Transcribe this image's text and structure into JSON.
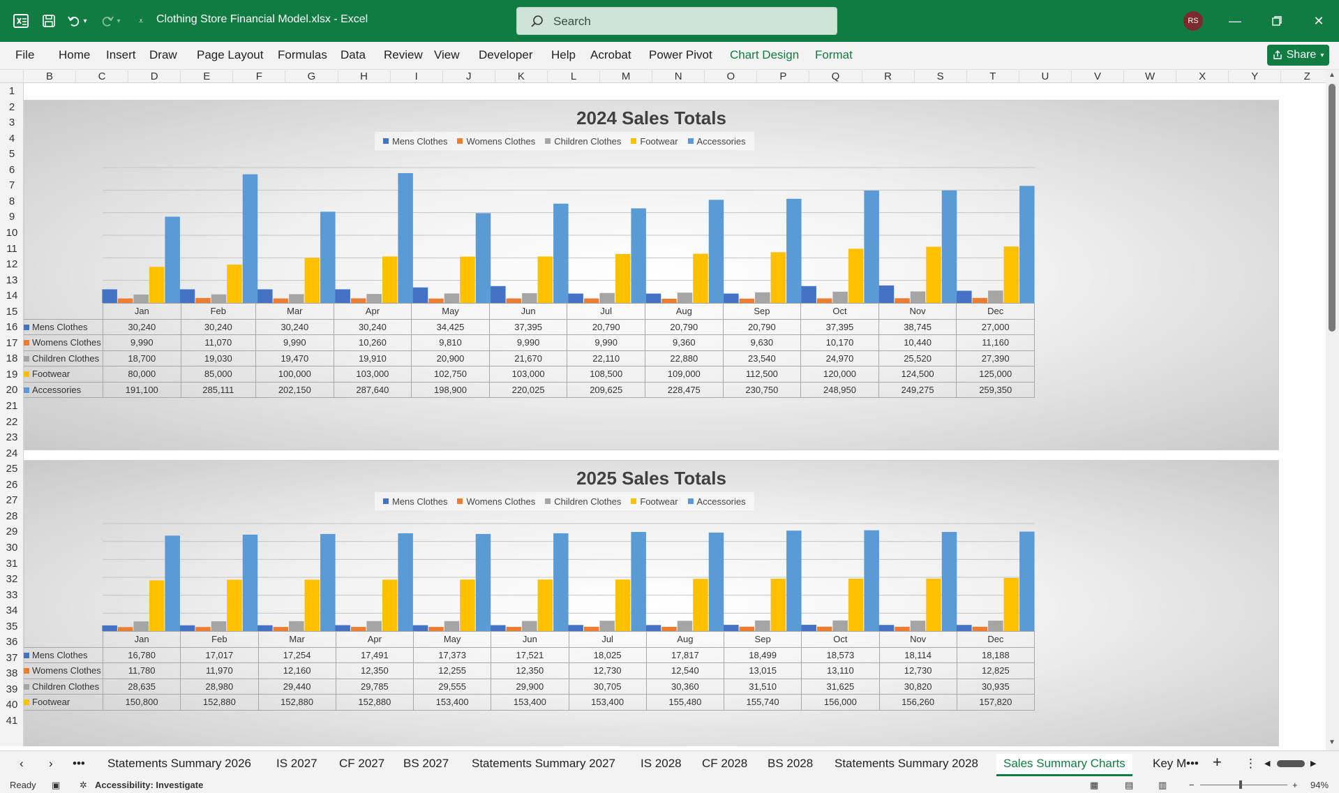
{
  "app": {
    "doc_title": "Clothing Store Financial Model.xlsx  -  Excel",
    "search_placeholder": "Search",
    "user_initials": "RS"
  },
  "ribbon": {
    "tabs": [
      "File",
      "Home",
      "Insert",
      "Draw",
      "Page Layout",
      "Formulas",
      "Data",
      "Review",
      "View",
      "Developer",
      "Help",
      "Acrobat",
      "Power Pivot",
      "Chart Design",
      "Format"
    ],
    "share_label": "Share"
  },
  "columns": [
    "B",
    "C",
    "D",
    "E",
    "F",
    "G",
    "H",
    "I",
    "J",
    "K",
    "L",
    "M",
    "N",
    "O",
    "P",
    "Q",
    "R",
    "S",
    "T",
    "U",
    "V",
    "W",
    "X",
    "Y",
    "Z"
  ],
  "rows": [
    "1",
    "2",
    "3",
    "4",
    "5",
    "6",
    "7",
    "8",
    "9",
    "10",
    "11",
    "12",
    "13",
    "14",
    "15",
    "16",
    "17",
    "18",
    "19",
    "20",
    "21",
    "22",
    "23",
    "24",
    "25",
    "26",
    "27",
    "28",
    "29",
    "30",
    "31",
    "32",
    "33",
    "34",
    "35",
    "36",
    "37",
    "38",
    "39",
    "40",
    "41"
  ],
  "colors": {
    "Mens Clothes": "#4472c4",
    "Womens Clothes": "#ed7d31",
    "Children Clothes": "#a5a5a5",
    "Footwear": "#ffc000",
    "Accessories": "#5b9bd5",
    "excel_green": "#107c41"
  },
  "chart_data": [
    {
      "type": "bar",
      "title": "2024 Sales Totals",
      "categories": [
        "Jan",
        "Feb",
        "Mar",
        "Apr",
        "May",
        "Jun",
        "Jul",
        "Aug",
        "Sep",
        "Oct",
        "Nov",
        "Dec"
      ],
      "legend": "top",
      "series": [
        {
          "name": "Mens Clothes",
          "values": [
            30240,
            30240,
            30240,
            30240,
            34425,
            37395,
            20790,
            20790,
            20790,
            37395,
            38745,
            27000
          ],
          "display": [
            "30,240",
            "30,240",
            "30,240",
            "30,240",
            "34,425",
            "37,395",
            "20,790",
            "20,790",
            "20,790",
            "37,395",
            "38,745",
            "27,000"
          ]
        },
        {
          "name": "Womens Clothes",
          "values": [
            9990,
            11070,
            9990,
            10260,
            9810,
            9990,
            9990,
            9360,
            9630,
            10170,
            10440,
            11160
          ],
          "display": [
            "9,990",
            "11,070",
            "9,990",
            "10,260",
            "9,810",
            "9,990",
            "9,990",
            "9,360",
            "9,630",
            "10,170",
            "10,440",
            "11,160"
          ]
        },
        {
          "name": "Children Clothes",
          "values": [
            18700,
            19030,
            19470,
            19910,
            20900,
            21670,
            22110,
            22880,
            23540,
            24970,
            25520,
            27390
          ],
          "display": [
            "18,700",
            "19,030",
            "19,470",
            "19,910",
            "20,900",
            "21,670",
            "22,110",
            "22,880",
            "23,540",
            "24,970",
            "25,520",
            "27,390"
          ]
        },
        {
          "name": "Footwear",
          "values": [
            80000,
            85000,
            100000,
            103000,
            102750,
            103000,
            108500,
            109000,
            112500,
            120000,
            124500,
            125000
          ],
          "display": [
            "80,000",
            "85,000",
            "100,000",
            "103,000",
            "102,750",
            "103,000",
            "108,500",
            "109,000",
            "112,500",
            "120,000",
            "124,500",
            "125,000"
          ]
        },
        {
          "name": "Accessories",
          "values": [
            191100,
            285111,
            202150,
            287640,
            198900,
            220025,
            209625,
            228475,
            230750,
            248950,
            249275,
            259350
          ],
          "display": [
            "191,100",
            "285,111",
            "202,150",
            "287,640",
            "198,900",
            "220,025",
            "209,625",
            "228,475",
            "230,750",
            "248,950",
            "249,275",
            "259,350"
          ]
        }
      ],
      "ylim": [
        0,
        300000
      ],
      "grid": true
    },
    {
      "type": "bar",
      "title": "2025 Sales Totals",
      "categories": [
        "Jan",
        "Feb",
        "Mar",
        "Apr",
        "May",
        "Jun",
        "Jul",
        "Aug",
        "Sep",
        "Oct",
        "Nov",
        "Dec"
      ],
      "legend": "top",
      "series": [
        {
          "name": "Mens Clothes",
          "values": [
            16780,
            17017,
            17254,
            17491,
            17373,
            17521,
            18025,
            17817,
            18499,
            18573,
            18114,
            18188
          ],
          "display": [
            "16,780",
            "17,017",
            "17,254",
            "17,491",
            "17,373",
            "17,521",
            "18,025",
            "17,817",
            "18,499",
            "18,573",
            "18,114",
            "18,188"
          ]
        },
        {
          "name": "Womens Clothes",
          "values": [
            11780,
            11970,
            12160,
            12350,
            12255,
            12350,
            12730,
            12540,
            13015,
            13110,
            12730,
            12825
          ],
          "display": [
            "11,780",
            "11,970",
            "12,160",
            "12,350",
            "12,255",
            "12,350",
            "12,730",
            "12,540",
            "13,015",
            "13,110",
            "12,730",
            "12,825"
          ]
        },
        {
          "name": "Children Clothes",
          "values": [
            28635,
            28980,
            29440,
            29785,
            29555,
            29900,
            30705,
            30360,
            31510,
            31625,
            30820,
            30935
          ],
          "display": [
            "28,635",
            "28,980",
            "29,440",
            "29,785",
            "29,555",
            "29,900",
            "30,705",
            "30,360",
            "31,510",
            "31,625",
            "30,820",
            "30,935"
          ]
        },
        {
          "name": "Footwear",
          "values": [
            150800,
            152880,
            152880,
            152880,
            153400,
            153400,
            153400,
            155480,
            155740,
            156000,
            156260,
            157820
          ],
          "display": [
            "150,800",
            "152,880",
            "152,880",
            "152,880",
            "153,400",
            "153,400",
            "153,400",
            "155,480",
            "155,740",
            "156,000",
            "156,260",
            "157,820"
          ]
        },
        {
          "name": "Accessories",
          "values": [
            284000,
            287000,
            289000,
            291000,
            289000,
            291000,
            295000,
            293000,
            299000,
            300000,
            295000,
            296000
          ]
        }
      ],
      "ylim": [
        0,
        320000
      ],
      "grid": true
    }
  ],
  "sheet_tabs": [
    "Statements Summary 2026",
    "IS 2027",
    "CF 2027",
    "BS 2027",
    "Statements Summary 2027",
    "IS 2028",
    "CF 2028",
    "BS 2028",
    "Statements Summary 2028",
    "Sales Summary Charts",
    "Key M"
  ],
  "active_sheet": "Sales Summary Charts",
  "status": {
    "ready": "Ready",
    "accessibility": "Accessibility: Investigate",
    "zoom": "94%"
  }
}
